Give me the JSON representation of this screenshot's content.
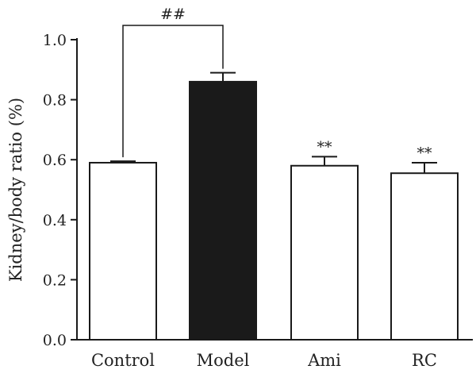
{
  "chart_data": {
    "type": "bar",
    "title": "",
    "xlabel": "",
    "ylabel": "Kidney/body ratio (%)",
    "ylim": [
      0,
      1.0
    ],
    "yticks": [
      0.0,
      0.2,
      0.4,
      0.6,
      0.8,
      1.0
    ],
    "ytick_labels": [
      "0.0",
      "0.2",
      "0.4",
      "0.6",
      "0.8",
      "1.0"
    ],
    "categories": [
      "Control",
      "Model",
      "Ami",
      "RC"
    ],
    "values": [
      0.59,
      0.86,
      0.58,
      0.555
    ],
    "errors": [
      0.005,
      0.03,
      0.03,
      0.035
    ],
    "bar_fill": [
      "#ffffff",
      "#1a1a1a",
      "#ffffff",
      "#ffffff"
    ],
    "bar_stroke": "#1a1a1a",
    "annotations": [
      "",
      "",
      "**",
      "**"
    ],
    "comparison": {
      "from": 0,
      "to": 1,
      "label": "##"
    },
    "grid": false,
    "legend": "none"
  }
}
